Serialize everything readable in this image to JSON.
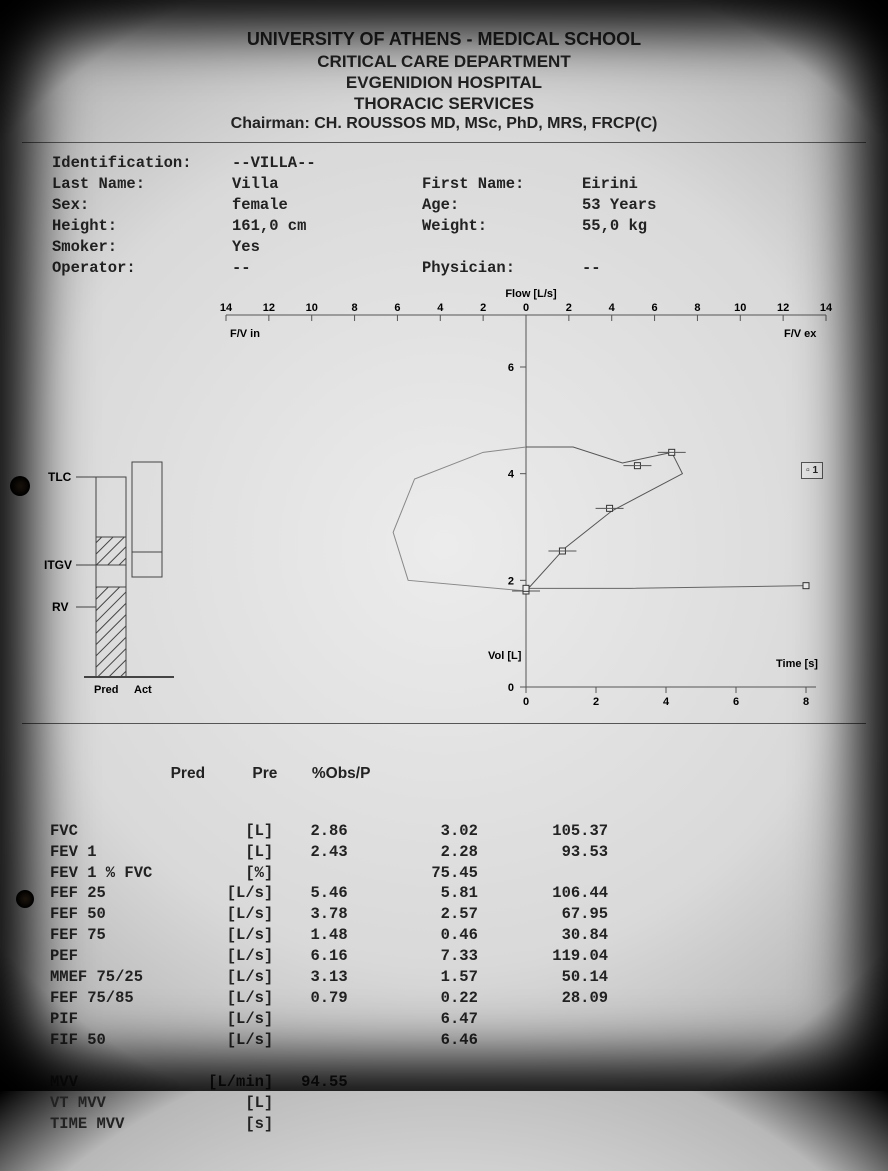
{
  "header": {
    "l1": "UNIVERSITY OF ATHENS - MEDICAL SCHOOL",
    "l2": "CRITICAL CARE DEPARTMENT",
    "l3": "EVGENIDION HOSPITAL",
    "l4": "THORACIC SERVICES",
    "l5": "Chairman: CH. ROUSSOS MD, MSc, PhD, MRS, FRCP(C)"
  },
  "patient": {
    "identification": "--VILLA--",
    "last_name": "Villa",
    "first_name": "Eirini",
    "sex": "female",
    "age": "53 Years",
    "height": "161,0 cm",
    "weight": "55,0 kg",
    "smoker": "Yes",
    "physician": "--",
    "operator": "--"
  },
  "labels": {
    "identification": "Identification:",
    "last_name": "Last Name:",
    "sex": "Sex:",
    "height": "Height:",
    "smoker": "Smoker:",
    "operator": "Operator:",
    "first_name": "First Name:",
    "age": "Age:",
    "weight": "Weight:",
    "physician": "Physician:"
  },
  "flow_axis": {
    "title": "Flow [L/s]",
    "ticks": [
      "14",
      "12",
      "10",
      "8",
      "6",
      "4",
      "2",
      "0",
      "2",
      "4",
      "6",
      "8",
      "10",
      "12",
      "14"
    ],
    "left_label": "F/V in",
    "right_label": "F/V ex",
    "y_title": "Vol [L]",
    "x2_title": "Time [s]",
    "y_ticks": [
      "0",
      "2",
      "4",
      "6"
    ],
    "x2_ticks": [
      "0",
      "2",
      "4",
      "6",
      "8"
    ],
    "line_color": "#555555",
    "grid_color": "#888888",
    "font_family": "Arial",
    "font_size": 10
  },
  "flow_volume_loop": {
    "type": "flow-volume-loop",
    "insp_path": [
      [
        0,
        1.8
      ],
      [
        -5.5,
        2.0
      ],
      [
        -6.2,
        2.9
      ],
      [
        -5.2,
        3.9
      ],
      [
        -2.0,
        4.4
      ],
      [
        0,
        4.5
      ]
    ],
    "exp_path": [
      [
        0,
        4.5
      ],
      [
        2.2,
        4.5
      ],
      [
        4.5,
        4.2
      ],
      [
        6.8,
        4.4
      ],
      [
        7.3,
        4.0
      ],
      [
        4.0,
        3.3
      ],
      [
        1.8,
        2.6
      ],
      [
        0,
        1.8
      ]
    ],
    "markers": [
      [
        0,
        1.8
      ],
      [
        1.7,
        2.55
      ],
      [
        3.9,
        3.35
      ],
      [
        5.2,
        4.15
      ],
      [
        6.8,
        4.4
      ]
    ],
    "marker_style": "square",
    "marker_size": 6,
    "stroke": "#444444",
    "stroke_width": 1
  },
  "volume_time": {
    "type": "line",
    "points": [
      [
        0,
        1.85
      ],
      [
        0.2,
        1.85
      ],
      [
        3.0,
        1.85
      ],
      [
        8.0,
        1.9
      ]
    ],
    "markers": [
      [
        0,
        1.85
      ],
      [
        8.0,
        1.9
      ]
    ],
    "stroke": "#555555"
  },
  "lung_diagram": {
    "labels": {
      "tlc": "TLC",
      "itgv": "ITGV",
      "rv": "RV",
      "pred": "Pred",
      "act": "Act"
    },
    "hatch_color": "#444444",
    "box_stroke": "#444444",
    "pred_heights": {
      "tlc": 1.0,
      "itgv": 0.55,
      "rv": 0.38
    },
    "act_heights": {
      "tlc": 1.08,
      "itgv": 0.48
    }
  },
  "legend": {
    "label": "1"
  },
  "columns": {
    "c0": "",
    "c1": "Pred",
    "c2": "Pre",
    "c3": "%Obs/P"
  },
  "results": [
    {
      "name": "FVC",
      "unit": "[L]",
      "pred": "2.86",
      "pre": "3.02",
      "obs": "105.37"
    },
    {
      "name": "FEV 1",
      "unit": "[L]",
      "pred": "2.43",
      "pre": "2.28",
      "obs": "93.53"
    },
    {
      "name": "FEV 1 % FVC",
      "unit": "[%]",
      "pred": "",
      "pre": "75.45",
      "obs": ""
    },
    {
      "name": "FEF 25",
      "unit": "[L/s]",
      "pred": "5.46",
      "pre": "5.81",
      "obs": "106.44"
    },
    {
      "name": "FEF 50",
      "unit": "[L/s]",
      "pred": "3.78",
      "pre": "2.57",
      "obs": "67.95"
    },
    {
      "name": "FEF 75",
      "unit": "[L/s]",
      "pred": "1.48",
      "pre": "0.46",
      "obs": "30.84"
    },
    {
      "name": "PEF",
      "unit": "[L/s]",
      "pred": "6.16",
      "pre": "7.33",
      "obs": "119.04"
    },
    {
      "name": "MMEF 75/25",
      "unit": "[L/s]",
      "pred": "3.13",
      "pre": "1.57",
      "obs": "50.14"
    },
    {
      "name": "FEF 75/85",
      "unit": "[L/s]",
      "pred": "0.79",
      "pre": "0.22",
      "obs": "28.09"
    },
    {
      "name": "PIF",
      "unit": "[L/s]",
      "pred": "",
      "pre": "6.47",
      "obs": ""
    },
    {
      "name": "FIF 50",
      "unit": "[L/s]",
      "pred": "",
      "pre": "6.46",
      "obs": ""
    },
    {
      "name": "",
      "unit": "",
      "pred": "",
      "pre": "",
      "obs": ""
    },
    {
      "name": "MVV",
      "unit": "[L/min]",
      "pred": "94.55",
      "pre": "",
      "obs": ""
    },
    {
      "name": "VT MVV",
      "unit": "[L]",
      "pred": "",
      "pre": "",
      "obs": ""
    },
    {
      "name": "TIME MVV",
      "unit": "[s]",
      "pred": "",
      "pre": "",
      "obs": ""
    }
  ]
}
